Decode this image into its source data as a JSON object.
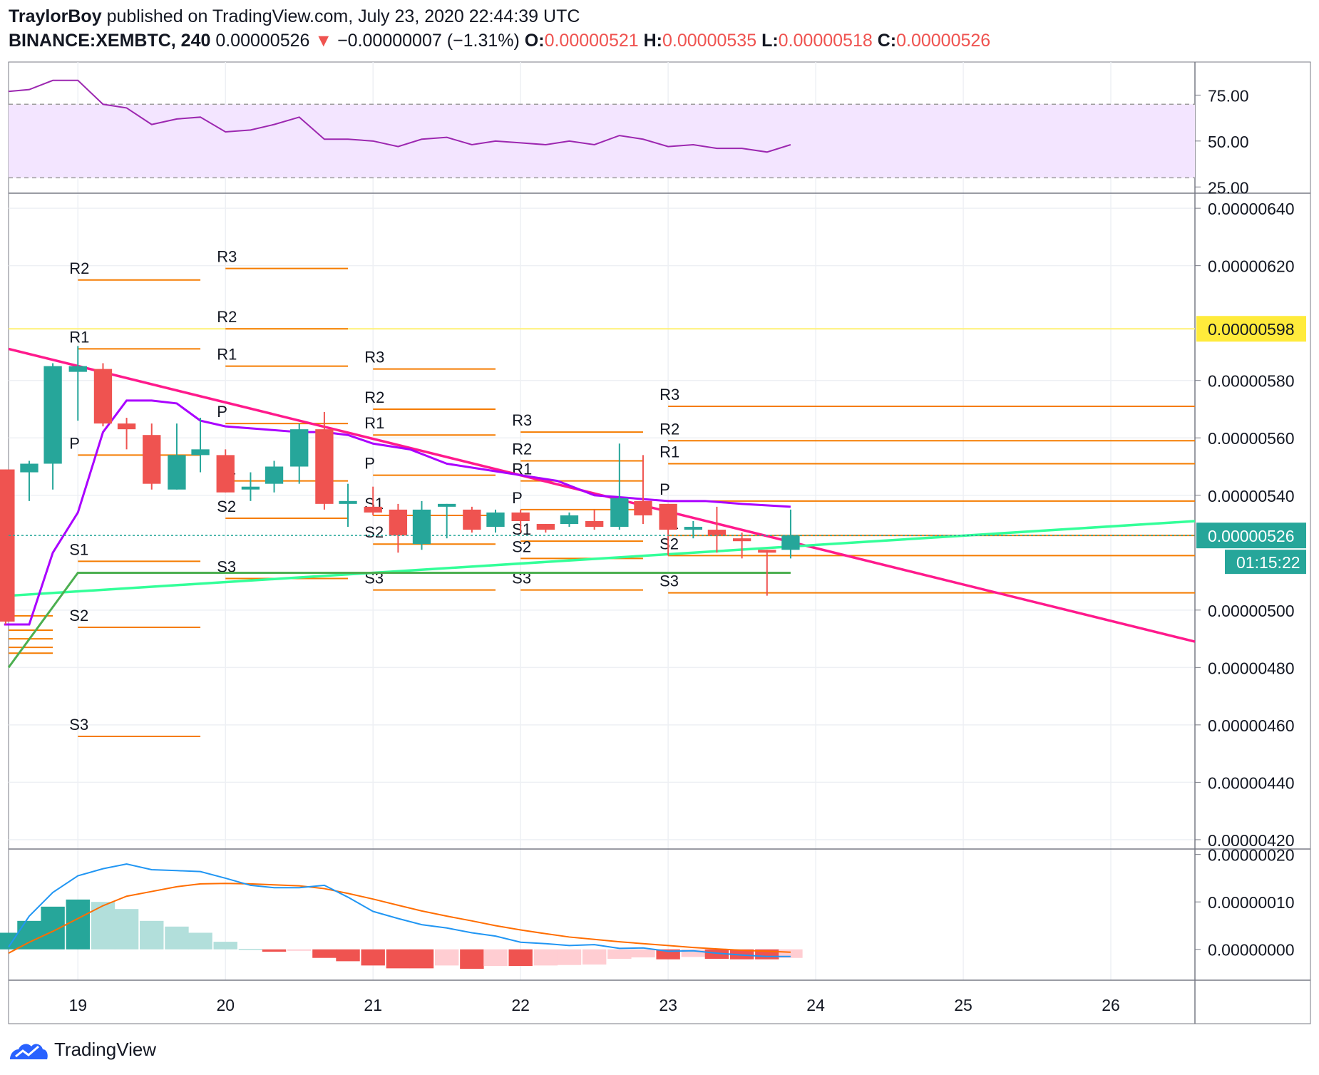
{
  "header": {
    "author": "TraylorBoy",
    "published_text": "published on TradingView.com, July 23, 2020 22:44:39 UTC",
    "symbol": "BINANCE:XEMBTC, 240",
    "price": "0.00000526",
    "change_arrow": "▼",
    "change": "−0.00000007 (−1.31%)",
    "open_label": "O:",
    "open": "0.00000521",
    "high_label": "H:",
    "high": "0.00000535",
    "low_label": "L:",
    "low": "0.00000518",
    "close_label": "C:",
    "close": "0.00000526"
  },
  "footer": {
    "brand": "TradingView"
  },
  "colors": {
    "up": "#26a69a",
    "down": "#ef5350",
    "pivot": "#f57c00",
    "rsi": "#9c27b0",
    "rsi_band": "#f3e5ff",
    "trend_down": "#ff1a8c",
    "trend_up": "#33ff99",
    "support_green": "#4caf50",
    "hline_yellow": "#fff176",
    "macd": "#2196f3",
    "signal": "#ff6d00",
    "hist_up": "#26a69a",
    "hist_up_light": "#b2dfdb",
    "hist_down": "#ef5350",
    "hist_down_light": "#ffcdd2",
    "purple_ma": "#aa00ff"
  },
  "chart_data": {
    "type": "candlestick",
    "symbol": "BINANCE:XEMBTC",
    "interval": "240",
    "x_axis": {
      "labels": [
        "19",
        "20",
        "21",
        "22",
        "23",
        "24",
        "25",
        "26"
      ],
      "range": [
        18.53,
        26.57
      ]
    },
    "price_axis": {
      "ticks": [
        "0.00000640",
        "0.00000620",
        "0.00000580",
        "0.00000560",
        "0.00000540",
        "0.00000500",
        "0.00000480",
        "0.00000460",
        "0.00000440",
        "0.00000420"
      ],
      "tick_values": [
        6.4e-06,
        6.2e-06,
        5.8e-06,
        5.6e-06,
        5.4e-06,
        5e-06,
        4.8e-06,
        4.6e-06,
        4.4e-06,
        4.2e-06
      ],
      "range": [
        4.17e-06,
        6.45e-06
      ],
      "price_label": "0.00000526",
      "countdown": "01:15:22",
      "alert_label": "0.00000598",
      "alert_value": 5.98e-06
    },
    "candles": [
      {
        "t": 18.51,
        "o": 5.49,
        "h": 5.49,
        "l": 4.95,
        "c": 4.96
      },
      {
        "t": 18.67,
        "o": 5.48,
        "h": 5.52,
        "l": 5.38,
        "c": 5.51
      },
      {
        "t": 18.83,
        "o": 5.51,
        "h": 5.86,
        "l": 5.42,
        "c": 5.85
      },
      {
        "t": 19.0,
        "o": 5.83,
        "h": 5.92,
        "l": 5.66,
        "c": 5.85
      },
      {
        "t": 19.17,
        "o": 5.84,
        "h": 5.86,
        "l": 5.64,
        "c": 5.65
      },
      {
        "t": 19.33,
        "o": 5.65,
        "h": 5.67,
        "l": 5.56,
        "c": 5.63
      },
      {
        "t": 19.5,
        "o": 5.61,
        "h": 5.65,
        "l": 5.42,
        "c": 5.44
      },
      {
        "t": 19.67,
        "o": 5.42,
        "h": 5.65,
        "l": 5.42,
        "c": 5.54
      },
      {
        "t": 19.83,
        "o": 5.54,
        "h": 5.67,
        "l": 5.48,
        "c": 5.56
      },
      {
        "t": 20.0,
        "o": 5.54,
        "h": 5.56,
        "l": 5.41,
        "c": 5.41
      },
      {
        "t": 20.17,
        "o": 5.42,
        "h": 5.48,
        "l": 5.38,
        "c": 5.43
      },
      {
        "t": 20.33,
        "o": 5.44,
        "h": 5.52,
        "l": 5.41,
        "c": 5.5
      },
      {
        "t": 20.5,
        "o": 5.5,
        "h": 5.65,
        "l": 5.44,
        "c": 5.63
      },
      {
        "t": 20.67,
        "o": 5.63,
        "h": 5.69,
        "l": 5.35,
        "c": 5.37
      },
      {
        "t": 20.83,
        "o": 5.37,
        "h": 5.44,
        "l": 5.29,
        "c": 5.38
      },
      {
        "t": 21.0,
        "o": 5.36,
        "h": 5.43,
        "l": 5.33,
        "c": 5.34
      },
      {
        "t": 21.17,
        "o": 5.35,
        "h": 5.37,
        "l": 5.2,
        "c": 5.26
      },
      {
        "t": 21.33,
        "o": 5.23,
        "h": 5.38,
        "l": 5.21,
        "c": 5.35
      },
      {
        "t": 21.5,
        "o": 5.36,
        "h": 5.37,
        "l": 5.25,
        "c": 5.37
      },
      {
        "t": 21.67,
        "o": 5.35,
        "h": 5.36,
        "l": 5.27,
        "c": 5.28
      },
      {
        "t": 21.83,
        "o": 5.29,
        "h": 5.35,
        "l": 5.27,
        "c": 5.34
      },
      {
        "t": 22.0,
        "o": 5.34,
        "h": 5.35,
        "l": 5.27,
        "c": 5.31
      },
      {
        "t": 22.17,
        "o": 5.3,
        "h": 5.3,
        "l": 5.27,
        "c": 5.28
      },
      {
        "t": 22.33,
        "o": 5.3,
        "h": 5.34,
        "l": 5.29,
        "c": 5.33
      },
      {
        "t": 22.5,
        "o": 5.31,
        "h": 5.35,
        "l": 5.28,
        "c": 5.29
      },
      {
        "t": 22.67,
        "o": 5.29,
        "h": 5.58,
        "l": 5.28,
        "c": 5.39
      },
      {
        "t": 22.83,
        "o": 5.38,
        "h": 5.54,
        "l": 5.3,
        "c": 5.33
      },
      {
        "t": 23.0,
        "o": 5.37,
        "h": 5.37,
        "l": 5.19,
        "c": 5.28
      },
      {
        "t": 23.17,
        "o": 5.28,
        "h": 5.31,
        "l": 5.25,
        "c": 5.29
      },
      {
        "t": 23.33,
        "o": 5.28,
        "h": 5.36,
        "l": 5.2,
        "c": 5.26
      },
      {
        "t": 23.5,
        "o": 5.25,
        "h": 5.27,
        "l": 5.18,
        "c": 5.24
      },
      {
        "t": 23.67,
        "o": 5.21,
        "h": 5.21,
        "l": 5.05,
        "c": 5.2
      },
      {
        "t": 23.83,
        "o": 5.21,
        "h": 5.35,
        "l": 5.18,
        "c": 5.26
      }
    ],
    "ma_line": [
      [
        18.5,
        4.95
      ],
      [
        18.67,
        4.95
      ],
      [
        18.83,
        5.2
      ],
      [
        19.0,
        5.34
      ],
      [
        19.17,
        5.62
      ],
      [
        19.33,
        5.73
      ],
      [
        19.5,
        5.73
      ],
      [
        19.67,
        5.72
      ],
      [
        19.83,
        5.66
      ],
      [
        20.0,
        5.64
      ],
      [
        20.25,
        5.63
      ],
      [
        20.5,
        5.62
      ],
      [
        20.67,
        5.62
      ],
      [
        20.83,
        5.61
      ],
      [
        21.0,
        5.58
      ],
      [
        21.25,
        5.56
      ],
      [
        21.5,
        5.51
      ],
      [
        21.75,
        5.49
      ],
      [
        22.0,
        5.47
      ],
      [
        22.25,
        5.45
      ],
      [
        22.5,
        5.4
      ],
      [
        22.75,
        5.39
      ],
      [
        23.0,
        5.38
      ],
      [
        23.25,
        5.38
      ],
      [
        23.5,
        5.37
      ],
      [
        23.83,
        5.36
      ]
    ],
    "trend_lines": [
      {
        "id": "descending",
        "from": [
          18.53,
          5.91
        ],
        "to": [
          26.57,
          4.89
        ]
      },
      {
        "id": "ascending",
        "from": [
          18.53,
          5.05
        ],
        "to": [
          26.57,
          5.31
        ]
      },
      {
        "id": "green-support",
        "from": [
          18.53,
          4.8
        ],
        "to": [
          23.83,
          5.13
        ],
        "kink": [
          19.0,
          5.13
        ]
      }
    ],
    "pivot_labels": [
      "R3",
      "R2",
      "R1",
      "P",
      "S1",
      "S2",
      "S3"
    ],
    "pivots": [
      {
        "start": 19.0,
        "end": 19.83,
        "R3": null,
        "R2": 6.15,
        "R1": 5.91,
        "P": 5.54,
        "S1": 5.17,
        "S2": 4.94,
        "S3": 4.56
      },
      {
        "start": 20.0,
        "end": 20.83,
        "R3": 6.19,
        "R2": 5.98,
        "R1": 5.85,
        "P": 5.65,
        "S1": 5.45,
        "S2": 5.32,
        "S3": 5.11
      },
      {
        "start": 21.0,
        "end": 21.83,
        "R3": 5.84,
        "R2": 5.7,
        "R1": 5.61,
        "P": 5.47,
        "S1": 5.33,
        "S2": 5.23,
        "S3": 5.07
      },
      {
        "start": 22.0,
        "end": 22.83,
        "R3": 5.62,
        "R2": 5.52,
        "R1": 5.45,
        "P": 5.35,
        "S1": 5.24,
        "S2": 5.18,
        "S3": 5.07
      },
      {
        "start": 23.0,
        "end": 26.57,
        "R3": 5.71,
        "R2": 5.59,
        "R1": 5.51,
        "P": 5.38,
        "S1": 5.26,
        "S2": 5.19,
        "S3": 5.06
      }
    ],
    "rsi": {
      "ticks": [
        "75.00",
        "50.00",
        "25.00"
      ],
      "tick_values": [
        75,
        50,
        25
      ],
      "upper": 70,
      "lower": 30,
      "range": [
        22,
        93
      ],
      "values": [
        [
          18.53,
          77
        ],
        [
          18.67,
          78
        ],
        [
          18.83,
          83
        ],
        [
          19.0,
          83
        ],
        [
          19.17,
          70
        ],
        [
          19.33,
          68
        ],
        [
          19.5,
          59
        ],
        [
          19.67,
          62
        ],
        [
          19.83,
          63
        ],
        [
          20.0,
          55
        ],
        [
          20.17,
          56
        ],
        [
          20.33,
          59
        ],
        [
          20.5,
          63
        ],
        [
          20.67,
          51
        ],
        [
          20.83,
          51
        ],
        [
          21.0,
          50
        ],
        [
          21.17,
          47
        ],
        [
          21.33,
          51
        ],
        [
          21.5,
          52
        ],
        [
          21.67,
          48
        ],
        [
          21.83,
          50
        ],
        [
          22.0,
          49
        ],
        [
          22.17,
          48
        ],
        [
          22.33,
          50
        ],
        [
          22.5,
          48
        ],
        [
          22.67,
          53
        ],
        [
          22.83,
          51
        ],
        [
          23.0,
          47
        ],
        [
          23.17,
          48
        ],
        [
          23.33,
          46
        ],
        [
          23.5,
          46
        ],
        [
          23.67,
          44
        ],
        [
          23.83,
          48
        ]
      ]
    },
    "macd": {
      "ticks": [
        "0.00000020",
        "0.00000010",
        "0.00000000"
      ],
      "tick_values": [
        20,
        10,
        0
      ],
      "range": [
        -6.5,
        21
      ],
      "macd": [
        [
          18.53,
          0.5
        ],
        [
          18.67,
          7
        ],
        [
          18.83,
          12
        ],
        [
          19.0,
          15.5
        ],
        [
          19.17,
          17
        ],
        [
          19.33,
          18
        ],
        [
          19.5,
          16.8
        ],
        [
          19.67,
          16.6
        ],
        [
          19.83,
          16.4
        ],
        [
          20.0,
          15
        ],
        [
          20.17,
          13.5
        ],
        [
          20.33,
          13
        ],
        [
          20.5,
          13
        ],
        [
          20.67,
          13.5
        ],
        [
          20.83,
          11
        ],
        [
          21.0,
          8
        ],
        [
          21.17,
          6.5
        ],
        [
          21.33,
          5.2
        ],
        [
          21.5,
          4.5
        ],
        [
          21.67,
          3.5
        ],
        [
          21.83,
          2.8
        ],
        [
          22.0,
          1.5
        ],
        [
          22.17,
          1.2
        ],
        [
          22.33,
          0.8
        ],
        [
          22.5,
          1.0
        ],
        [
          22.67,
          0.2
        ],
        [
          22.83,
          0.3
        ],
        [
          23.0,
          -0.4
        ],
        [
          23.17,
          -0.3
        ],
        [
          23.33,
          -0.8
        ],
        [
          23.5,
          -1.2
        ],
        [
          23.67,
          -1.5
        ],
        [
          23.83,
          -1.5
        ]
      ],
      "signal": [
        [
          18.53,
          -0.8
        ],
        [
          18.67,
          1.5
        ],
        [
          18.83,
          3.8
        ],
        [
          19.0,
          6.5
        ],
        [
          19.17,
          9.2
        ],
        [
          19.33,
          11.2
        ],
        [
          19.5,
          12.2
        ],
        [
          19.67,
          13.2
        ],
        [
          19.83,
          13.8
        ],
        [
          20.0,
          13.9
        ],
        [
          20.17,
          13.8
        ],
        [
          20.33,
          13.6
        ],
        [
          20.5,
          13.4
        ],
        [
          20.67,
          12.8
        ],
        [
          20.83,
          11.8
        ],
        [
          21.0,
          10.6
        ],
        [
          21.17,
          9.3
        ],
        [
          21.33,
          8.1
        ],
        [
          21.5,
          7.0
        ],
        [
          21.67,
          6.0
        ],
        [
          21.83,
          5.0
        ],
        [
          22.0,
          4.1
        ],
        [
          22.17,
          3.3
        ],
        [
          22.33,
          2.6
        ],
        [
          22.5,
          2.1
        ],
        [
          22.67,
          1.6
        ],
        [
          22.83,
          1.2
        ],
        [
          23.0,
          0.8
        ],
        [
          23.17,
          0.4
        ],
        [
          23.33,
          0.1
        ],
        [
          23.5,
          -0.2
        ],
        [
          23.67,
          -0.4
        ],
        [
          23.83,
          -0.6
        ]
      ],
      "histogram": [
        3.5,
        6,
        9,
        10.5,
        10,
        8.5,
        6,
        4.8,
        3.5,
        1.6,
        0.1,
        -0.5,
        -0.3,
        -1.8,
        -2.5,
        -3.4,
        -4,
        -4,
        -3.4,
        -4.1,
        -3.5,
        -3.5,
        -3.4,
        -3.3,
        -3.2,
        -2,
        -1.7,
        -2.1,
        -1.6,
        -2,
        -2.1,
        -2.1,
        -1.8
      ]
    }
  }
}
